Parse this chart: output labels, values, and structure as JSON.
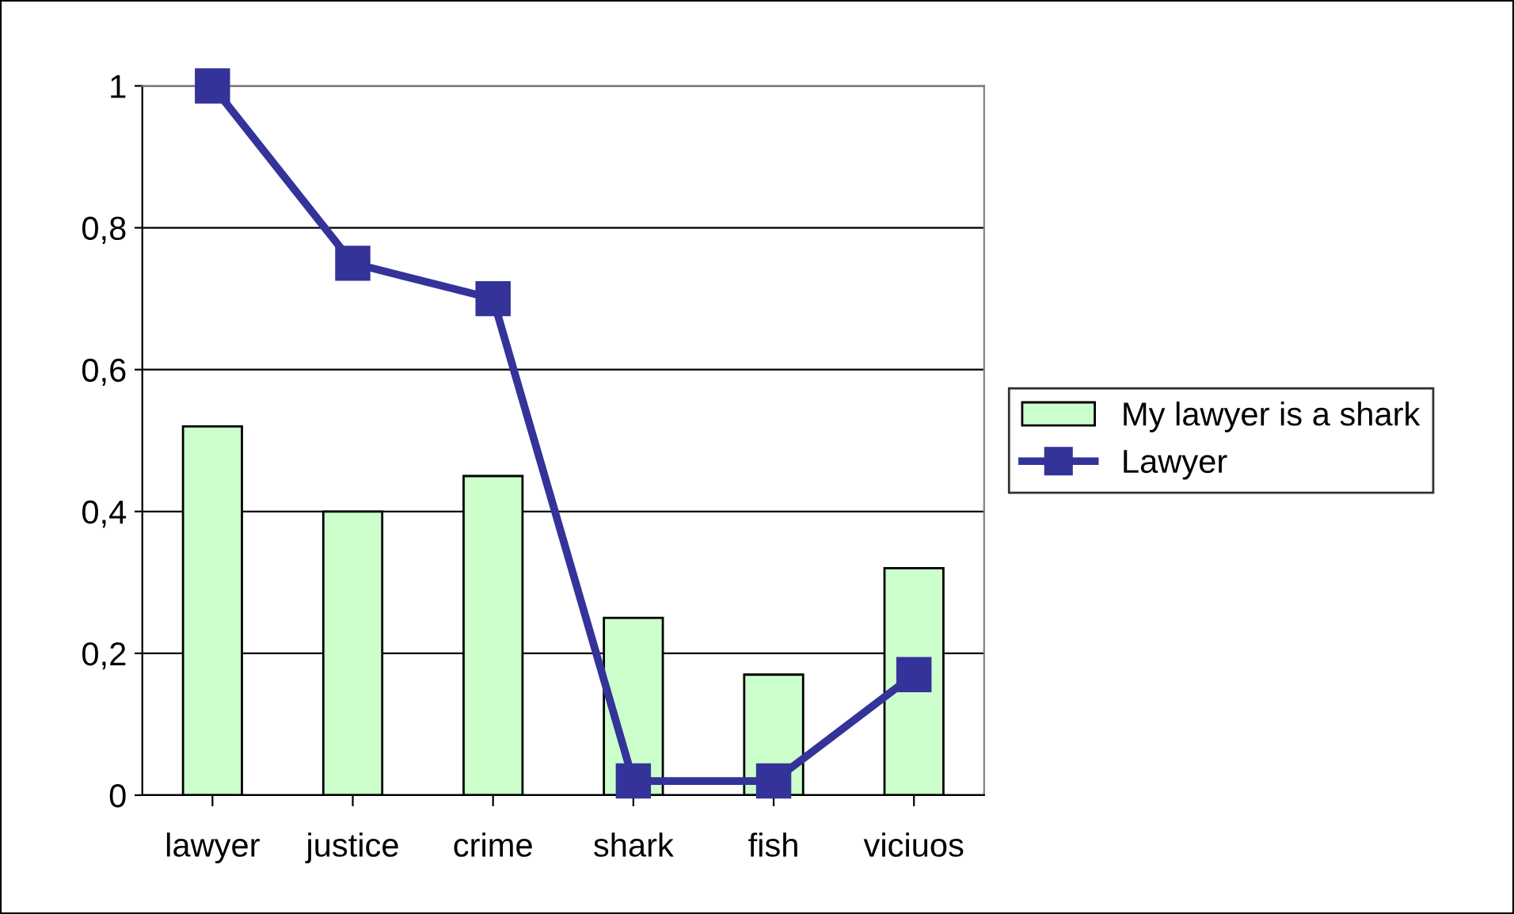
{
  "chart_data": {
    "type": "bar",
    "categories": [
      "lawyer",
      "justice",
      "crime",
      "shark",
      "fish",
      "viciuos"
    ],
    "series": [
      {
        "name": "My lawyer is a shark",
        "color": "#ccffcc",
        "values": [
          0.52,
          0.4,
          0.45,
          0.25,
          0.17,
          0.32
        ]
      },
      {
        "name": "Lawyer",
        "type": "line",
        "color": "#333399",
        "values": [
          1.0,
          0.75,
          0.7,
          0.02,
          0.02,
          0.17
        ]
      }
    ],
    "ylim": [
      0,
      1
    ],
    "yticks": [
      {
        "value": 0,
        "label": "0"
      },
      {
        "value": 0.2,
        "label": "0,2"
      },
      {
        "value": 0.4,
        "label": "0,4"
      },
      {
        "value": 0.6,
        "label": "0,6"
      },
      {
        "value": 0.8,
        "label": "0,8"
      },
      {
        "value": 1,
        "label": "1"
      }
    ],
    "grid": "y",
    "legend": "right",
    "marker": "square",
    "line_style": "solid"
  }
}
